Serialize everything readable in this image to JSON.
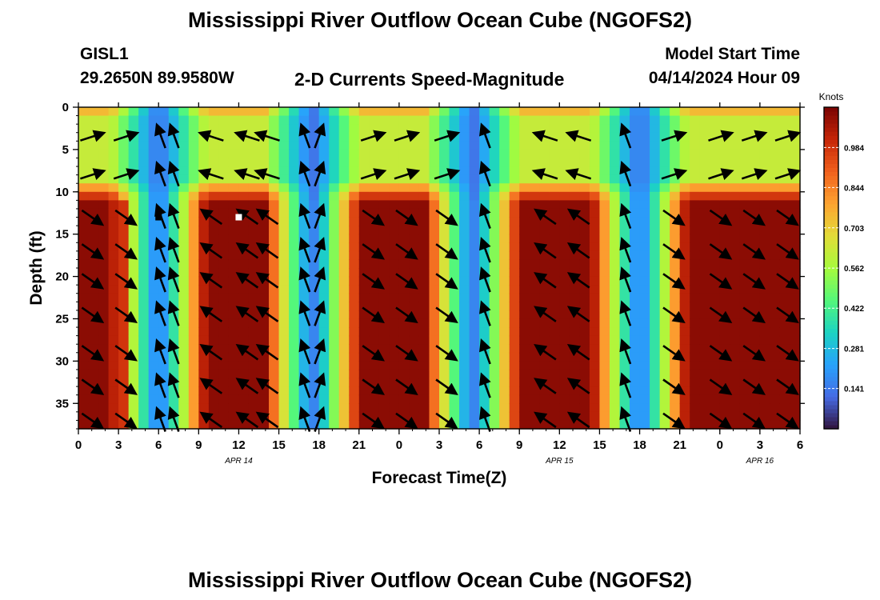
{
  "title": "Mississippi River Outflow Ocean Cube (NGOFS2)",
  "title_repeat": "Mississippi River Outflow Ocean Cube (NGOFS2)",
  "station": {
    "id": "GISL1",
    "coords": "29.2650N  89.9580W"
  },
  "subtitle": "2-D Currents Speed-Magnitude",
  "model_start": {
    "label": "Model Start Time",
    "value": "04/14/2024 Hour 09"
  },
  "chart_data": {
    "type": "heatmap",
    "title": "2-D Currents Speed-Magnitude",
    "xlabel": "Forecast Time(Z)",
    "ylabel": "Depth (ft)",
    "x_unit": "hours since 2024-04-14 00Z (axis shows hour of day)",
    "xlim": [
      0,
      54
    ],
    "ylim": [
      38,
      0
    ],
    "x_ticks": [
      0,
      3,
      6,
      9,
      12,
      15,
      18,
      21,
      24,
      27,
      30,
      33,
      36,
      39,
      42,
      45,
      48,
      51,
      54
    ],
    "x_tick_labels": [
      "0",
      "3",
      "6",
      "9",
      "12",
      "15",
      "18",
      "21",
      "0",
      "3",
      "6",
      "9",
      "12",
      "15",
      "18",
      "21",
      "0",
      "3",
      "6"
    ],
    "y_ticks": [
      0,
      5,
      10,
      15,
      20,
      25,
      30,
      35
    ],
    "y_tick_labels": [
      "0",
      "5",
      "10",
      "15",
      "20",
      "25",
      "30",
      "35"
    ],
    "date_labels": [
      {
        "x": 12,
        "text": "APR 14"
      },
      {
        "x": 36,
        "text": "APR 15"
      },
      {
        "x": 51,
        "text": "APR 16"
      }
    ],
    "colorbar": {
      "label": "Knots",
      "min": 0,
      "max": 1.125,
      "ticks": [
        0.141,
        0.281,
        0.422,
        0.562,
        0.703,
        0.844,
        0.984
      ],
      "tick_labels": [
        "0.141",
        "0.281",
        "0.422",
        "0.562",
        "0.703",
        "0.844",
        "0.984"
      ],
      "colormap": "turbo"
    },
    "speed_peaks_upper_hours": [
      1,
      12,
      23.5,
      35.5,
      48
    ],
    "speed_minima_hours": [
      6,
      17.5,
      29.5,
      42
    ],
    "arrow_columns_hours": [
      1,
      3.5,
      6.2,
      7.2,
      10,
      12.7,
      14.2,
      17,
      18,
      22,
      24.5,
      27.5,
      30.5,
      35,
      37.5,
      41,
      44.5,
      48,
      50.5,
      53
    ],
    "arrow_rows_ft": [
      3.5,
      8,
      13,
      17,
      20.5,
      24.5,
      29,
      33,
      37
    ],
    "markers": [
      {
        "x": 6,
        "y": 13,
        "color": "#000000"
      },
      {
        "x": 12,
        "y": 13,
        "color": "#ffffff"
      }
    ]
  }
}
